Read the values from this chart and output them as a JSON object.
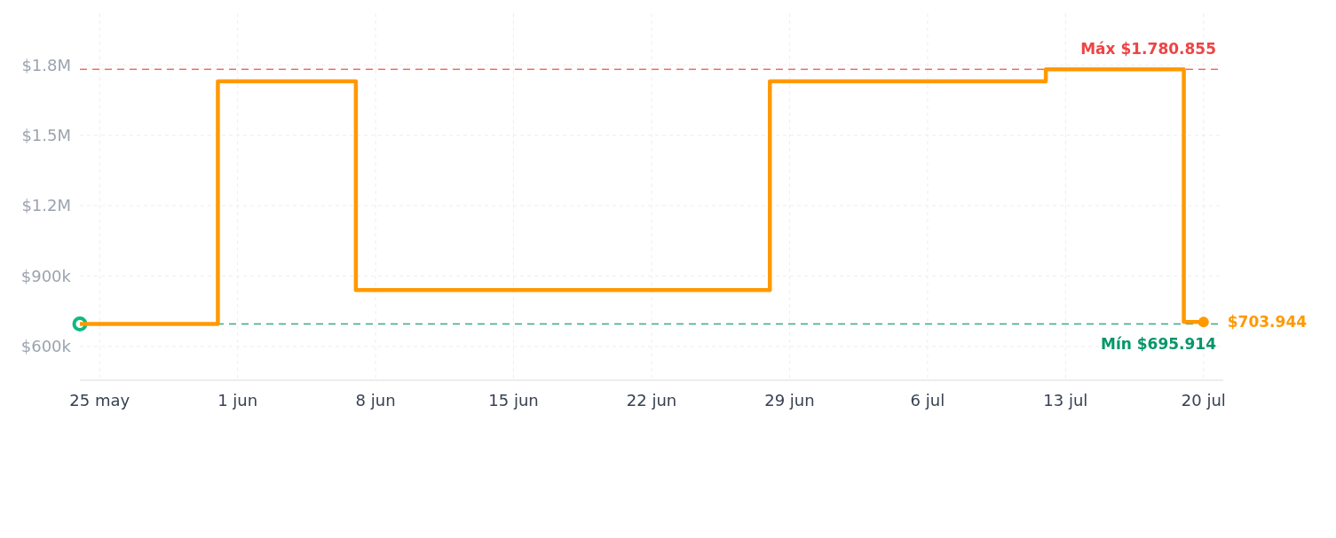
{
  "chart_data": {
    "type": "step",
    "x": [
      "--05-24",
      "--05-31",
      "--06-07",
      "--06-28",
      "--07-12",
      "--07-19",
      "--07-20"
    ],
    "series": [
      {
        "color": "#ff9900",
        "values": [
          695914,
          1730000,
          840000,
          1730000,
          1780855,
          703944,
          703944
        ]
      }
    ],
    "xlim": [
      "--05-24",
      "--07-21"
    ],
    "xticks": [
      {
        "value": "--05-25",
        "label": "25 may"
      },
      {
        "value": "--06-01",
        "label": "1 jun"
      },
      {
        "value": "--06-08",
        "label": "8 jun"
      },
      {
        "value": "--06-15",
        "label": "15 jun"
      },
      {
        "value": "--06-22",
        "label": "22 jun"
      },
      {
        "value": "--06-29",
        "label": "29 jun"
      },
      {
        "value": "--07-06",
        "label": "6 jul"
      },
      {
        "value": "--07-13",
        "label": "13 jul"
      },
      {
        "value": "--07-20",
        "label": "20 jul"
      }
    ],
    "ylim": [
      456000,
      2020000
    ],
    "yticks": [
      {
        "value": 600000,
        "label": "$600k"
      },
      {
        "value": 900000,
        "label": "$900k"
      },
      {
        "value": 1200000,
        "label": "$1.2M"
      },
      {
        "value": 1500000,
        "label": "$1.5M"
      },
      {
        "value": 1800000,
        "label": "$1.8M"
      }
    ],
    "ref_lines": [
      {
        "axis": "y",
        "value": 1780855,
        "label": "Máx $1.780.855",
        "color": "#ef4444",
        "line_style": "dashed"
      },
      {
        "axis": "y",
        "value": 695914,
        "label": "Mín $695.914",
        "color": "#059669",
        "line_style": "dashed"
      }
    ],
    "annotations": [
      {
        "text": "$703.944",
        "x": "--07-20",
        "y": 703944
      }
    ],
    "grid": true,
    "marker": "none",
    "line_style": "solid"
  }
}
